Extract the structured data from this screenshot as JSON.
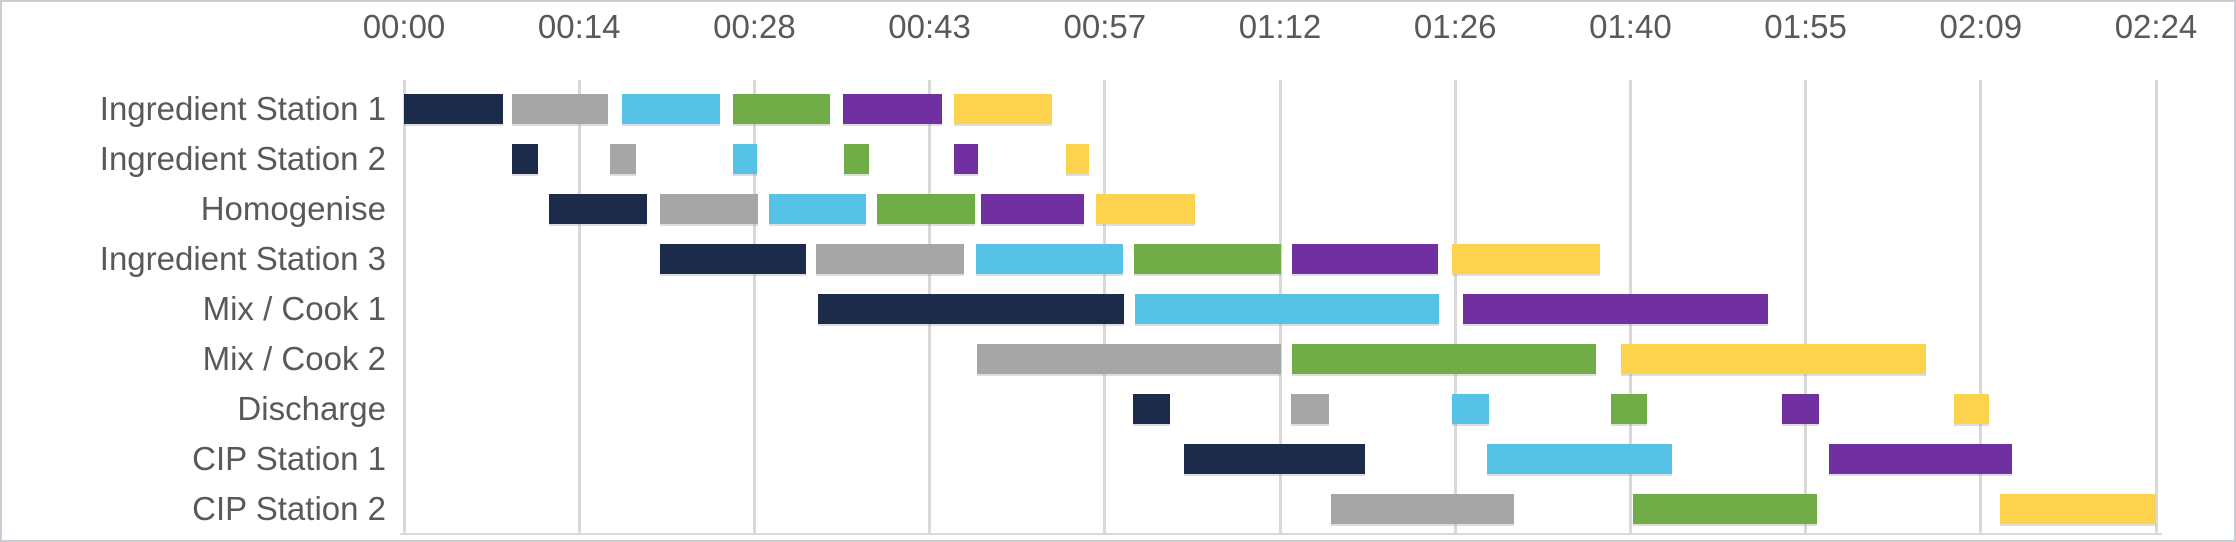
{
  "chart_data": {
    "type": "gantt",
    "title": "",
    "x_axis": {
      "tick_labels": [
        "00:00",
        "00:14",
        "00:28",
        "00:43",
        "00:57",
        "01:12",
        "01:26",
        "01:40",
        "01:55",
        "02:09",
        "02:24"
      ],
      "min_minutes": 0,
      "max_minutes": 144,
      "tick_interval_minutes": 14.4,
      "grid": true
    },
    "legend": false,
    "series_colors": {
      "navy": "#1c2b4a",
      "grey": "#a6a6a6",
      "blue": "#56c2e6",
      "green": "#70ad47",
      "purple": "#7030a0",
      "yellow": "#fcd34d"
    },
    "rows": [
      {
        "label": "Ingredient Station 1",
        "tasks": [
          {
            "series": "navy",
            "start_min": 0.0,
            "end_min": 8.1
          },
          {
            "series": "grey",
            "start_min": 8.9,
            "end_min": 16.8
          },
          {
            "series": "blue",
            "start_min": 17.9,
            "end_min": 26.0
          },
          {
            "series": "green",
            "start_min": 27.0,
            "end_min": 35.0
          },
          {
            "series": "purple",
            "start_min": 36.1,
            "end_min": 44.2
          },
          {
            "series": "yellow",
            "start_min": 45.2,
            "end_min": 53.3
          }
        ]
      },
      {
        "label": "Ingredient Station 2",
        "tasks": [
          {
            "series": "navy",
            "start_min": 8.9,
            "end_min": 11.0
          },
          {
            "series": "grey",
            "start_min": 16.9,
            "end_min": 19.1
          },
          {
            "series": "blue",
            "start_min": 27.0,
            "end_min": 29.0
          },
          {
            "series": "green",
            "start_min": 36.2,
            "end_min": 38.2
          },
          {
            "series": "purple",
            "start_min": 45.2,
            "end_min": 47.2
          },
          {
            "series": "yellow",
            "start_min": 54.4,
            "end_min": 56.3
          }
        ]
      },
      {
        "label": "Homogenise",
        "tasks": [
          {
            "series": "navy",
            "start_min": 11.9,
            "end_min": 20.0
          },
          {
            "series": "grey",
            "start_min": 21.0,
            "end_min": 29.1
          },
          {
            "series": "blue",
            "start_min": 30.0,
            "end_min": 38.0
          },
          {
            "series": "green",
            "start_min": 38.9,
            "end_min": 46.9
          },
          {
            "series": "purple",
            "start_min": 47.4,
            "end_min": 55.9
          },
          {
            "series": "yellow",
            "start_min": 56.9,
            "end_min": 65.0
          }
        ]
      },
      {
        "label": "Ingredient Station 3",
        "tasks": [
          {
            "series": "navy",
            "start_min": 21.0,
            "end_min": 33.0
          },
          {
            "series": "grey",
            "start_min": 33.9,
            "end_min": 46.0
          },
          {
            "series": "blue",
            "start_min": 47.0,
            "end_min": 59.1
          },
          {
            "series": "green",
            "start_min": 60.0,
            "end_min": 72.1
          },
          {
            "series": "purple",
            "start_min": 73.0,
            "end_min": 85.0
          },
          {
            "series": "yellow",
            "start_min": 86.1,
            "end_min": 98.3
          }
        ]
      },
      {
        "label": "Mix / Cook 1",
        "tasks": [
          {
            "series": "navy",
            "start_min": 34.0,
            "end_min": 59.2
          },
          {
            "series": "blue",
            "start_min": 60.1,
            "end_min": 85.1
          },
          {
            "series": "purple",
            "start_min": 87.0,
            "end_min": 112.1
          }
        ]
      },
      {
        "label": "Mix / Cook 2",
        "tasks": [
          {
            "series": "grey",
            "start_min": 47.1,
            "end_min": 72.1
          },
          {
            "series": "green",
            "start_min": 73.0,
            "end_min": 98.0
          },
          {
            "series": "yellow",
            "start_min": 100.0,
            "end_min": 125.1
          }
        ]
      },
      {
        "label": "Discharge",
        "tasks": [
          {
            "series": "navy",
            "start_min": 59.9,
            "end_min": 63.0
          },
          {
            "series": "grey",
            "start_min": 72.9,
            "end_min": 76.0
          },
          {
            "series": "blue",
            "start_min": 86.1,
            "end_min": 89.2
          },
          {
            "series": "green",
            "start_min": 99.2,
            "end_min": 102.2
          },
          {
            "series": "purple",
            "start_min": 113.3,
            "end_min": 116.3
          },
          {
            "series": "yellow",
            "start_min": 127.4,
            "end_min": 130.3
          }
        ]
      },
      {
        "label": "CIP Station 1",
        "tasks": [
          {
            "series": "navy",
            "start_min": 64.1,
            "end_min": 79.0
          },
          {
            "series": "blue",
            "start_min": 89.0,
            "end_min": 104.2
          },
          {
            "series": "purple",
            "start_min": 117.1,
            "end_min": 132.2
          }
        ]
      },
      {
        "label": "CIP Station 2",
        "tasks": [
          {
            "series": "grey",
            "start_min": 76.2,
            "end_min": 91.2
          },
          {
            "series": "green",
            "start_min": 101.0,
            "end_min": 116.1
          },
          {
            "series": "yellow",
            "start_min": 131.2,
            "end_min": 144.0
          }
        ]
      }
    ]
  },
  "styles": {
    "axis_text_color": "#595959",
    "gridline_color": "#d9d9d9",
    "background": "#ffffff",
    "frame_border_color": "#c9cdd1"
  }
}
